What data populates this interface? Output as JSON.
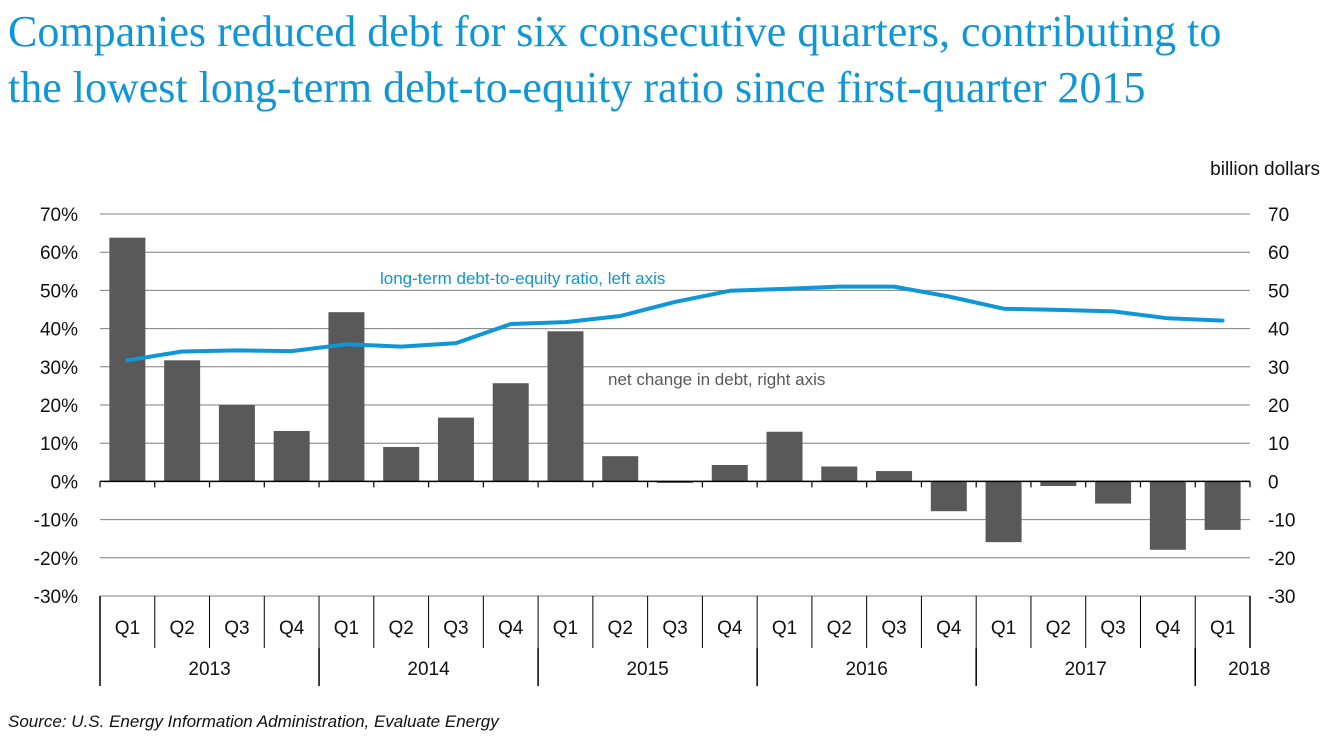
{
  "title": {
    "line1": "Companies reduced debt for six consecutive quarters, contributing to",
    "line2": "the lowest long-term debt-to-equity ratio since first-quarter 2015"
  },
  "source": "Source: U.S. Energy Information Administration, Evaluate Energy",
  "colors": {
    "title": "#0f96d6",
    "line": "#0f96d6",
    "bar": "#595959",
    "grid": "#7f7f7f",
    "text": "#111111",
    "bar_label": "#595959"
  },
  "chart_data": {
    "type": "bar+line",
    "right_axis_title": "billion dollars",
    "left_axis": {
      "min": -30,
      "max": 70,
      "step": 10,
      "tick_labels": [
        "70%",
        "60%",
        "50%",
        "40%",
        "30%",
        "20%",
        "10%",
        "0%",
        "-10%",
        "-20%",
        "-30%"
      ]
    },
    "right_axis": {
      "min": -30,
      "max": 70,
      "step": 10,
      "tick_labels": [
        "70",
        "60",
        "50",
        "40",
        "30",
        "20",
        "10",
        "0",
        "-10",
        "-20",
        "-30"
      ]
    },
    "categories": [
      "Q1",
      "Q2",
      "Q3",
      "Q4",
      "Q1",
      "Q2",
      "Q3",
      "Q4",
      "Q1",
      "Q2",
      "Q3",
      "Q4",
      "Q1",
      "Q2",
      "Q3",
      "Q4",
      "Q1",
      "Q2",
      "Q3",
      "Q4",
      "Q1"
    ],
    "years": [
      {
        "label": "2013",
        "quarters": 4
      },
      {
        "label": "2014",
        "quarters": 4
      },
      {
        "label": "2015",
        "quarters": 4
      },
      {
        "label": "2016",
        "quarters": 4
      },
      {
        "label": "2017",
        "quarters": 4
      },
      {
        "label": "2018",
        "quarters": 1
      }
    ],
    "series": [
      {
        "name": "net change in debt, right axis",
        "type": "bar",
        "axis": "right",
        "values": [
          63.8,
          31.7,
          20.0,
          13.2,
          44.3,
          9.0,
          16.7,
          25.7,
          39.3,
          6.6,
          -0.4,
          4.3,
          13.0,
          3.9,
          2.7,
          -7.8,
          -15.9,
          -1.2,
          -5.8,
          -17.9,
          -12.7
        ]
      },
      {
        "name": "long-term debt-to-equity ratio, left axis",
        "type": "line",
        "axis": "left",
        "values": [
          31.7,
          34.0,
          34.3,
          34.1,
          35.9,
          35.3,
          36.2,
          41.2,
          41.7,
          43.3,
          47.0,
          49.9,
          50.4,
          51.0,
          51.0,
          48.4,
          45.2,
          44.9,
          44.5,
          42.7,
          42.1
        ]
      }
    ],
    "annotations": {
      "line_label": "long-term debt-to-equity ratio, left axis",
      "bar_label": "net change in debt, right axis"
    }
  }
}
